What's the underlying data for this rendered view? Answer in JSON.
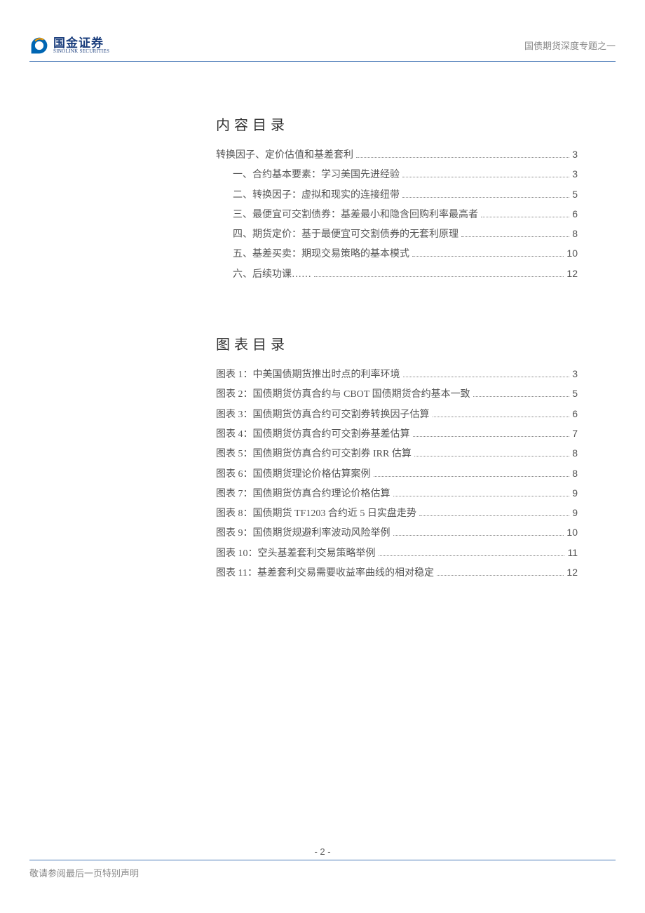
{
  "brand": {
    "name_cn": "国金证券",
    "name_en": "SINOLINK SECURITIES",
    "logo_color_primary": "#0066b3",
    "logo_color_accent": "#f39800"
  },
  "header": {
    "right_title": "国债期货深度专题之一",
    "divider_color": "#4a7ab8"
  },
  "sections": [
    {
      "title": "内容目录",
      "items": [
        {
          "label": "转换因子、定价估值和基差套利",
          "page": "3",
          "sub": false
        },
        {
          "label": "一、合约基本要素：学习美国先进经验",
          "page": "3",
          "sub": true
        },
        {
          "label": "二、转换因子：虚拟和现实的连接纽带",
          "page": "5",
          "sub": true
        },
        {
          "label": "三、最便宜可交割债券：基差最小和隐含回购利率最高者",
          "page": "6",
          "sub": true
        },
        {
          "label": "四、期货定价：基于最便宜可交割债券的无套利原理",
          "page": "8",
          "sub": true
        },
        {
          "label": "五、基差买卖：期现交易策略的基本模式",
          "page": "10",
          "sub": true
        },
        {
          "label": "六、后续功课……",
          "page": "12",
          "sub": true
        }
      ]
    },
    {
      "title": "图表目录",
      "items": [
        {
          "label": "图表 1：中美国债期货推出时点的利率环境",
          "page": "3",
          "sub": false
        },
        {
          "label": "图表 2：国债期货仿真合约与 CBOT 国债期货合约基本一致",
          "page": "5",
          "sub": false
        },
        {
          "label": "图表 3：国债期货仿真合约可交割券转换因子估算",
          "page": "6",
          "sub": false
        },
        {
          "label": "图表 4：国债期货仿真合约可交割券基差估算",
          "page": "7",
          "sub": false
        },
        {
          "label": "图表 5：国债期货仿真合约可交割券 IRR 估算",
          "page": "8",
          "sub": false
        },
        {
          "label": "图表 6：国债期货理论价格估算案例",
          "page": "8",
          "sub": false
        },
        {
          "label": "图表 7：国债期货仿真合约理论价格估算",
          "page": "9",
          "sub": false
        },
        {
          "label": "图表 8：国债期货 TF1203 合约近 5 日实盘走势",
          "page": "9",
          "sub": false
        },
        {
          "label": "图表 9：国债期货规避利率波动风险举例",
          "page": "10",
          "sub": false
        },
        {
          "label": "图表 10：空头基差套利交易策略举例",
          "page": "11",
          "sub": false
        },
        {
          "label": "图表 11：基差套利交易需要收益率曲线的相对稳定",
          "page": "12",
          "sub": false
        }
      ]
    }
  ],
  "footer": {
    "page_num": "- 2 -",
    "disclaimer": "敬请参阅最后一页特别声明"
  },
  "style": {
    "title_fontsize": 20,
    "body_fontsize": 14,
    "text_color": "#555555",
    "title_color": "#333333",
    "page_bg": "#ffffff"
  }
}
